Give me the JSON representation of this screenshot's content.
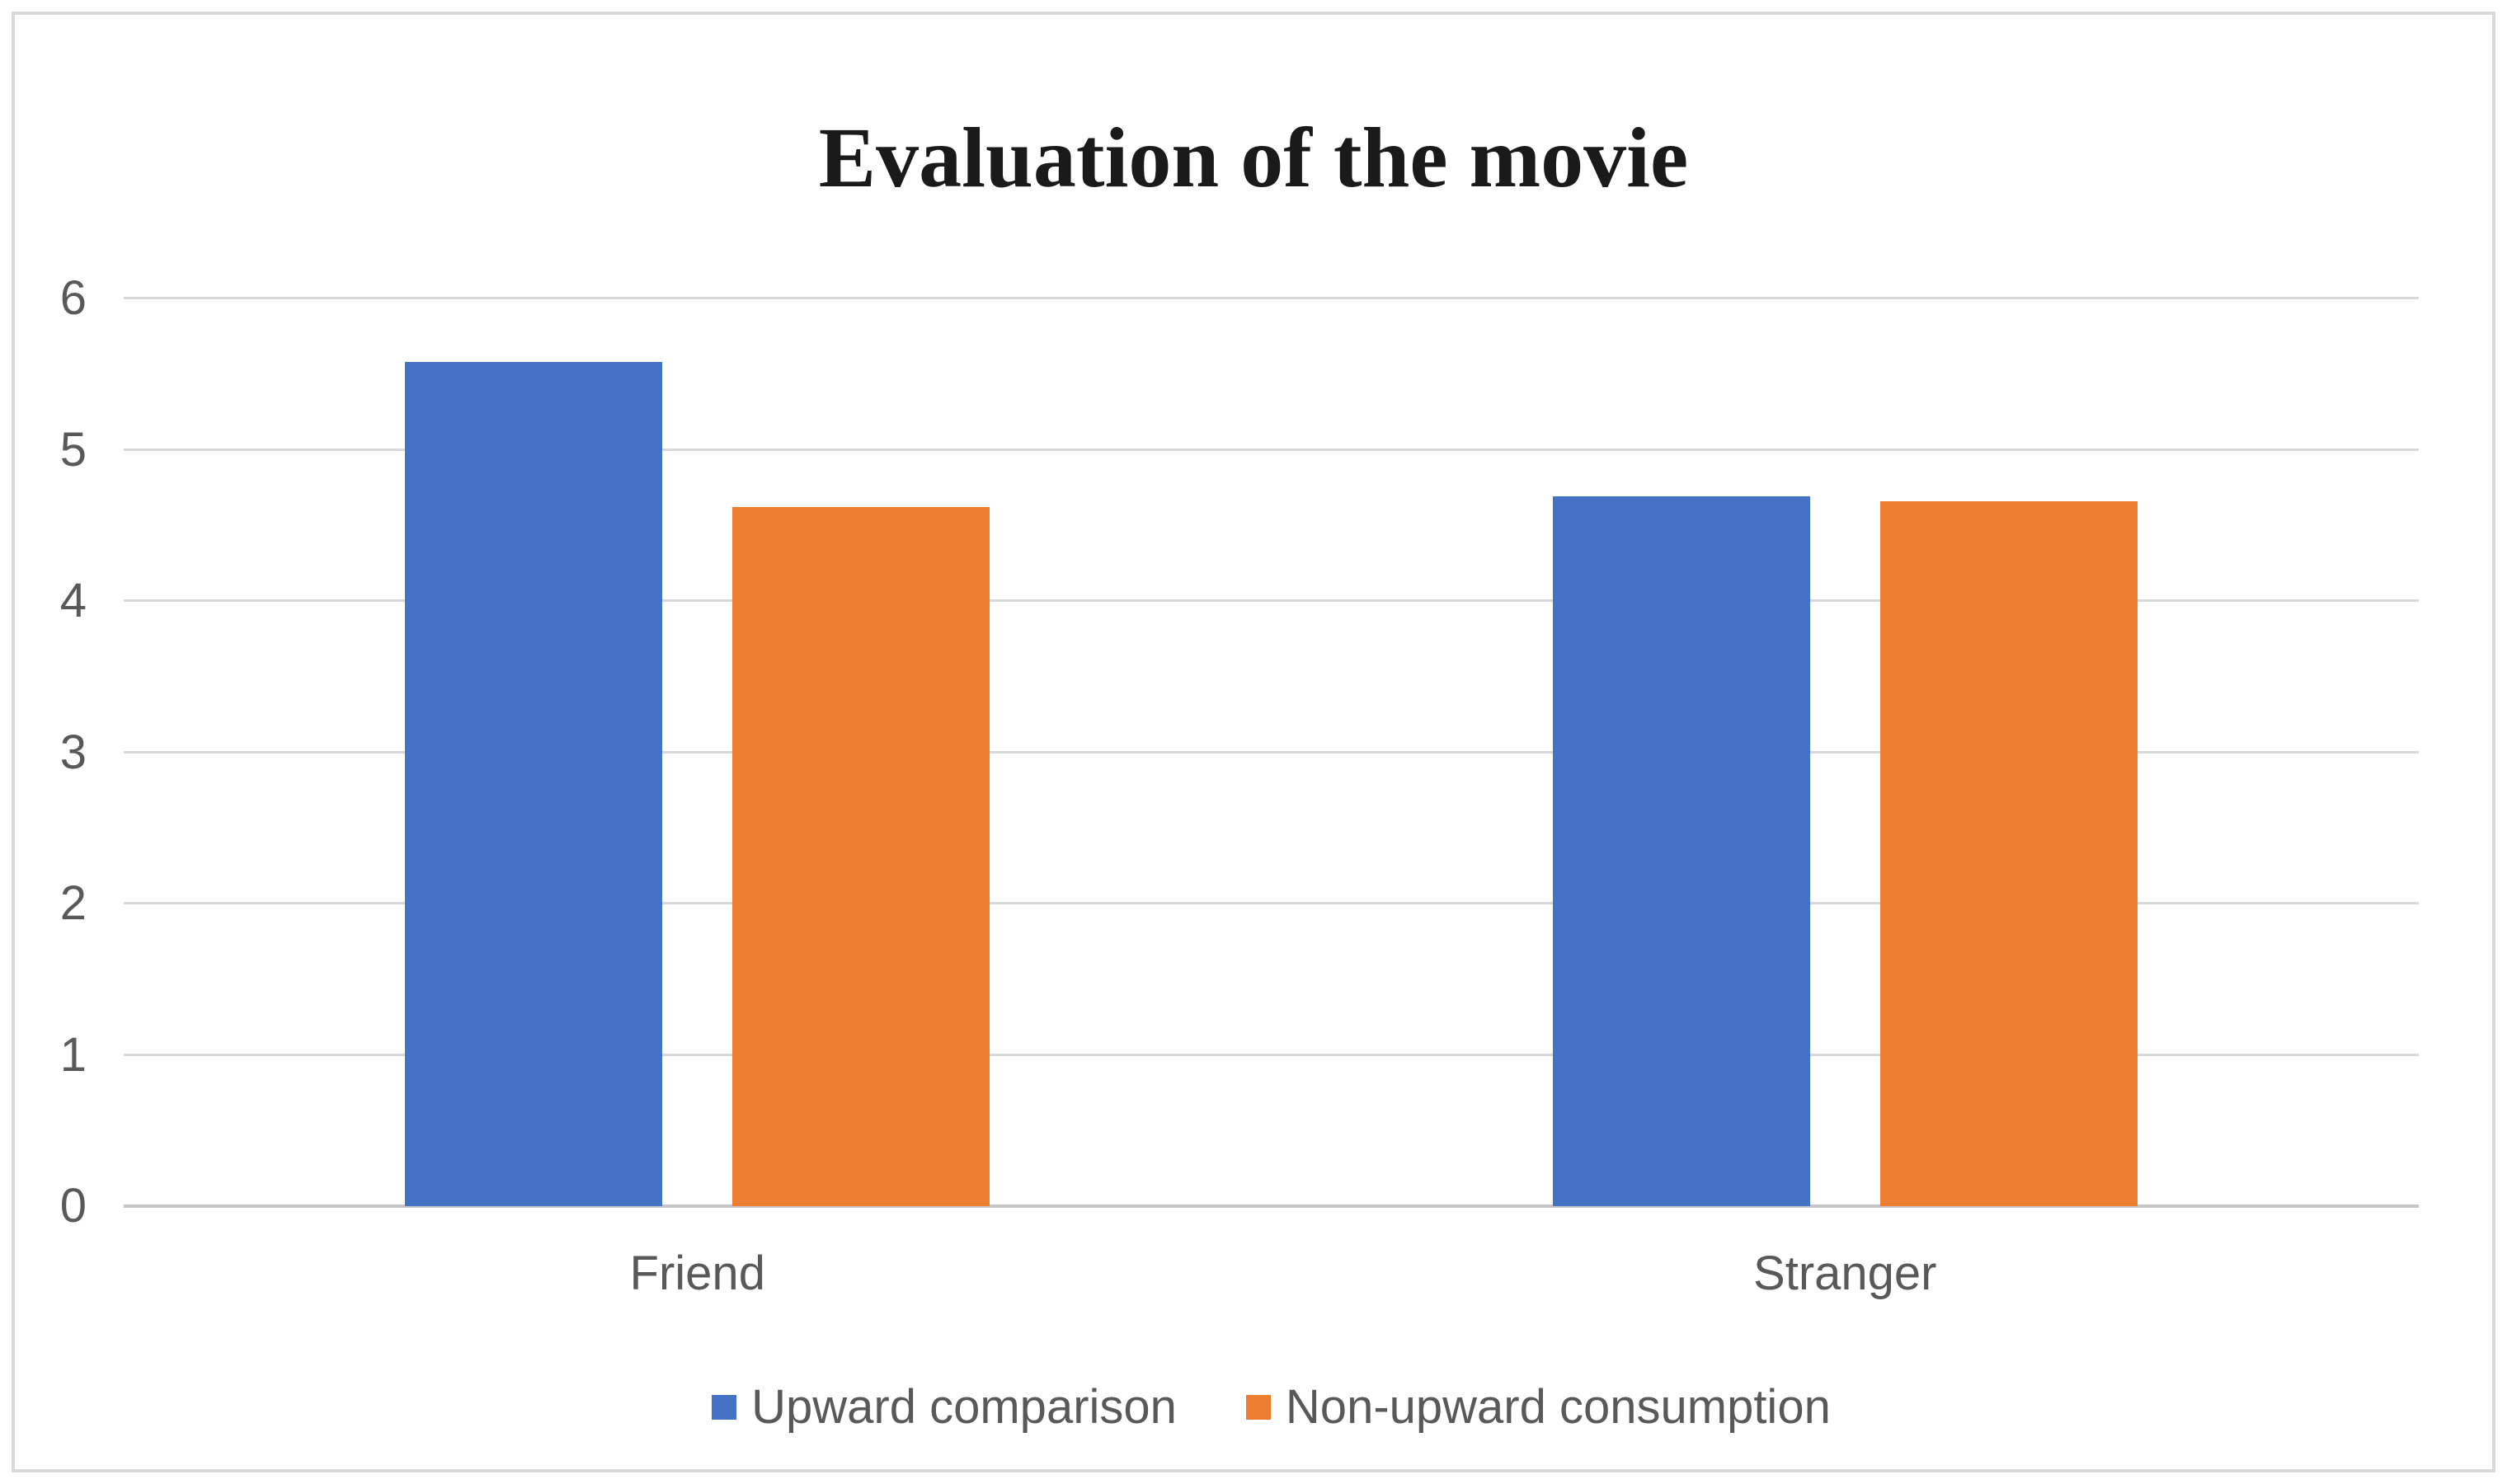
{
  "frame": {
    "border_color": "#d9d9d9",
    "background": "#ffffff"
  },
  "chart_data": {
    "type": "bar",
    "title": "Evaluation of the movie",
    "categories": [
      "Friend",
      "Stranger"
    ],
    "series": [
      {
        "name": "Upward comparison",
        "color": "#4472C4",
        "values": [
          5.58,
          4.69
        ]
      },
      {
        "name": "Non-upward consumption",
        "color": "#ED7D31",
        "values": [
          4.62,
          4.66
        ]
      }
    ],
    "ylim": [
      0,
      6
    ],
    "yticks": [
      0,
      1,
      2,
      3,
      4,
      5,
      6
    ],
    "grid": true,
    "legend_position": "bottom",
    "xlabel": "",
    "ylabel": "",
    "title_color": "#1a1a1a",
    "text_color": "#595959",
    "gridline_color": "#d9d9d9",
    "axis_line_color": "#c6c6c6"
  }
}
